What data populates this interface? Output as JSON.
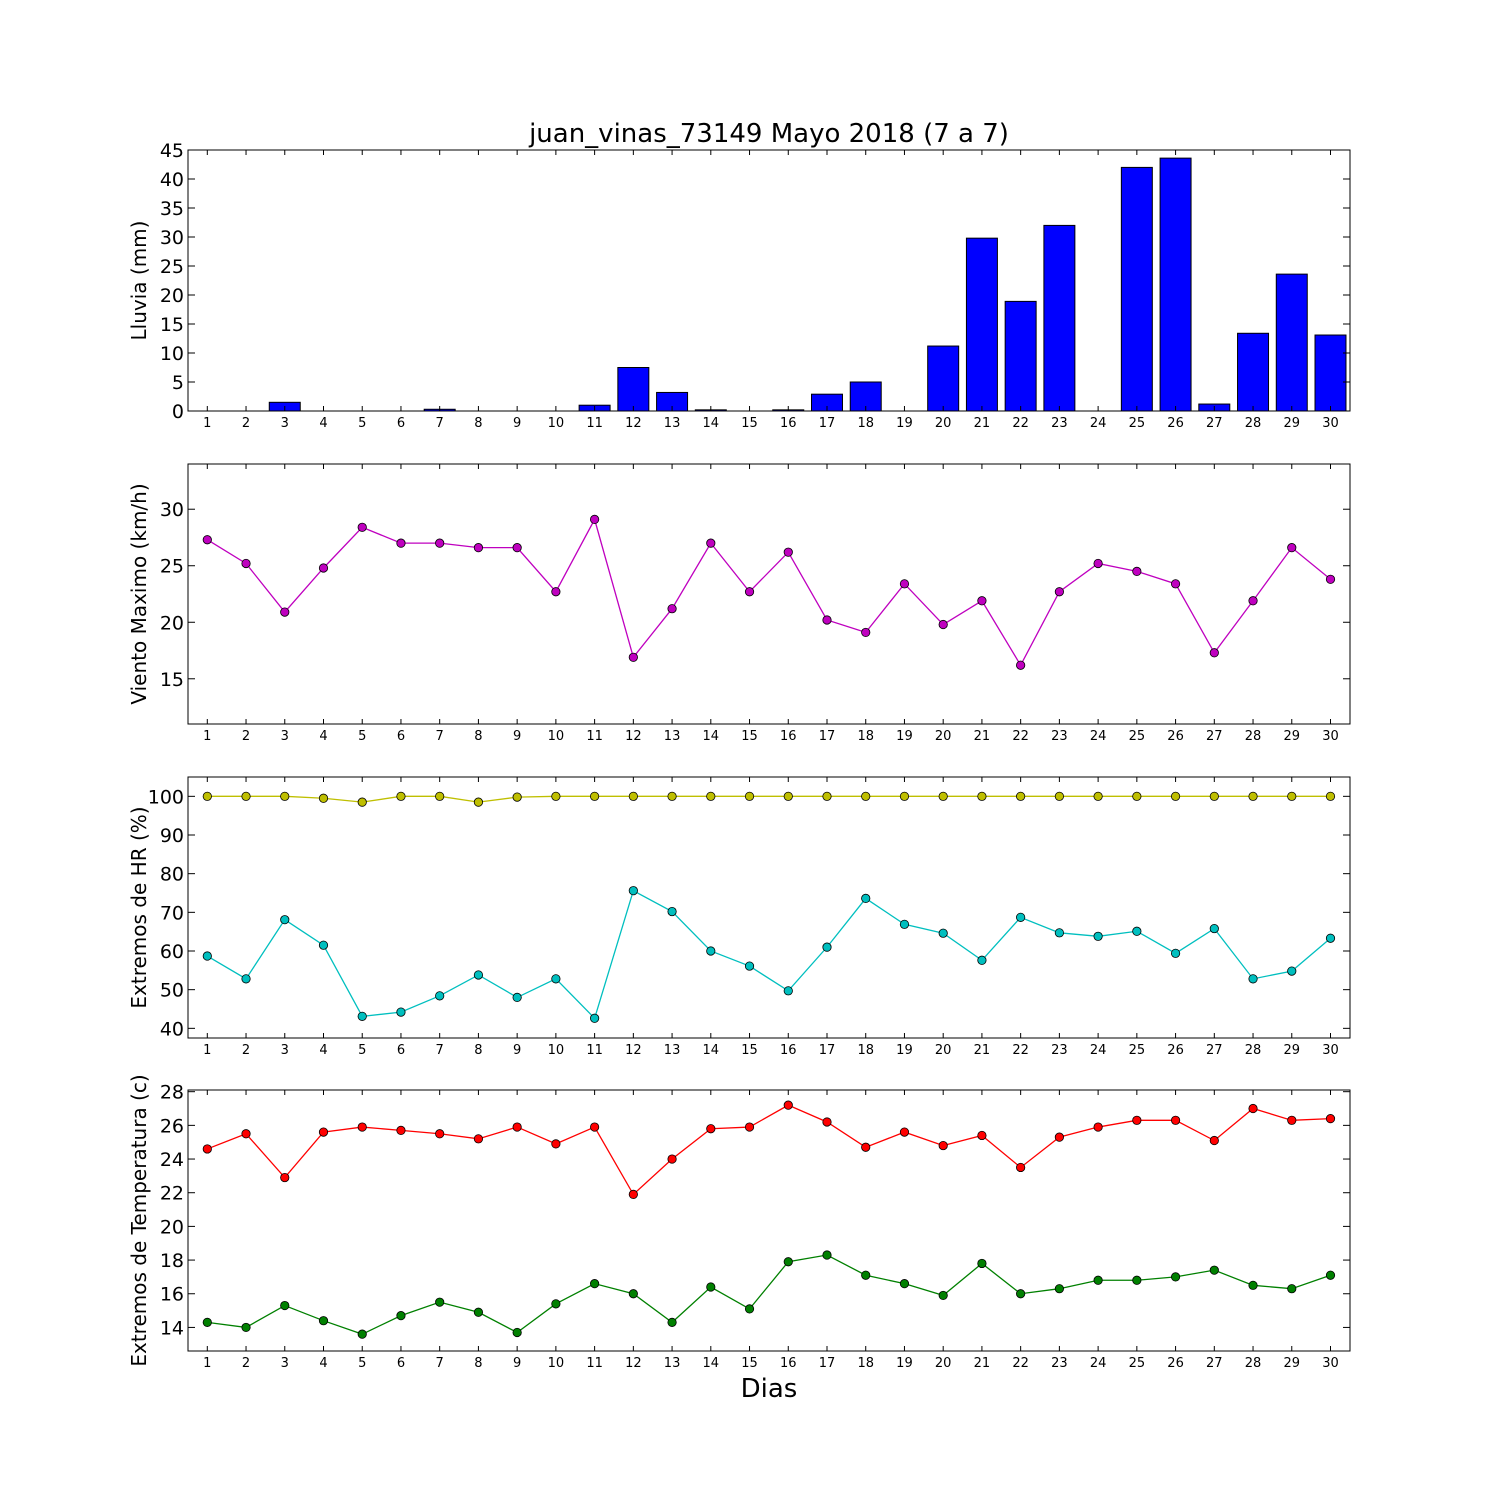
{
  "title": "juan_vinas_73149 Mayo 2018  (7 a 7)",
  "xlabel": "Dias",
  "chart_data": [
    {
      "type": "bar",
      "ylabel": "Lluvia (mm)",
      "ylim": [
        0,
        45
      ],
      "yticks": [
        0,
        5,
        10,
        15,
        20,
        25,
        30,
        35,
        40,
        45
      ],
      "categories": [
        1,
        2,
        3,
        4,
        5,
        6,
        7,
        8,
        9,
        10,
        11,
        12,
        13,
        14,
        15,
        16,
        17,
        18,
        19,
        20,
        21,
        22,
        23,
        24,
        25,
        26,
        27,
        28,
        29,
        30
      ],
      "series": [
        {
          "color": "#0000ff",
          "values": [
            0,
            0,
            1.5,
            0,
            0,
            0,
            0.3,
            0,
            0,
            0,
            1.0,
            7.5,
            3.2,
            0.2,
            0,
            0.2,
            2.9,
            5.0,
            0,
            11.2,
            29.8,
            18.9,
            32.0,
            0,
            42.0,
            43.6,
            1.2,
            13.4,
            23.6,
            13.1
          ]
        }
      ]
    },
    {
      "type": "line",
      "ylabel": "Viento Maximo (km/h)",
      "ylim": [
        11,
        34
      ],
      "yticks": [
        15,
        20,
        25,
        30
      ],
      "x": [
        1,
        2,
        3,
        4,
        5,
        6,
        7,
        8,
        9,
        10,
        11,
        12,
        13,
        14,
        15,
        16,
        17,
        18,
        19,
        20,
        21,
        22,
        23,
        24,
        25,
        26,
        27,
        28,
        29,
        30
      ],
      "series": [
        {
          "color": "#bf00bf",
          "values": [
            27.3,
            25.2,
            20.9,
            24.8,
            28.4,
            27.0,
            27.0,
            26.6,
            26.6,
            22.7,
            29.1,
            16.9,
            21.2,
            27.0,
            22.7,
            26.2,
            20.2,
            19.1,
            23.4,
            19.8,
            21.9,
            16.2,
            22.7,
            25.2,
            24.5,
            23.4,
            17.3,
            21.9,
            26.6,
            23.8
          ]
        }
      ]
    },
    {
      "type": "line",
      "ylabel": "Extremos de HR (%)",
      "ylim": [
        37.5,
        105
      ],
      "yticks": [
        40,
        50,
        60,
        70,
        80,
        90,
        100
      ],
      "x": [
        1,
        2,
        3,
        4,
        5,
        6,
        7,
        8,
        9,
        10,
        11,
        12,
        13,
        14,
        15,
        16,
        17,
        18,
        19,
        20,
        21,
        22,
        23,
        24,
        25,
        26,
        27,
        28,
        29,
        30
      ],
      "series": [
        {
          "color": "#bfbf00",
          "values": [
            100,
            100,
            100,
            99.5,
            98.5,
            100,
            100,
            98.5,
            99.8,
            100,
            100,
            100,
            100,
            100,
            100,
            100,
            100,
            100,
            100,
            100,
            100,
            100,
            100,
            100,
            100,
            100,
            100,
            100,
            100,
            100
          ]
        },
        {
          "color": "#00bfbf",
          "values": [
            58.7,
            52.8,
            68.1,
            61.5,
            43.1,
            44.2,
            48.4,
            53.8,
            48.0,
            52.8,
            42.6,
            75.6,
            70.2,
            60.0,
            56.1,
            49.7,
            61.0,
            73.6,
            66.9,
            64.6,
            57.6,
            68.7,
            64.7,
            63.8,
            65.1,
            59.4,
            65.8,
            52.8,
            54.8,
            63.3
          ]
        }
      ]
    },
    {
      "type": "line",
      "ylabel": "Extremos de Temperatura (c)",
      "ylim": [
        12.6,
        28.1
      ],
      "yticks": [
        14,
        16,
        18,
        20,
        22,
        24,
        26,
        28
      ],
      "x": [
        1,
        2,
        3,
        4,
        5,
        6,
        7,
        8,
        9,
        10,
        11,
        12,
        13,
        14,
        15,
        16,
        17,
        18,
        19,
        20,
        21,
        22,
        23,
        24,
        25,
        26,
        27,
        28,
        29,
        30
      ],
      "series": [
        {
          "color": "#ff0000",
          "values": [
            24.6,
            25.5,
            22.9,
            25.6,
            25.9,
            25.7,
            25.5,
            25.2,
            25.9,
            24.9,
            25.9,
            21.9,
            24.0,
            25.8,
            25.9,
            27.2,
            26.2,
            24.7,
            25.6,
            24.8,
            25.4,
            23.5,
            25.3,
            25.9,
            26.3,
            26.3,
            25.1,
            27.0,
            26.3,
            26.4
          ]
        },
        {
          "color": "#008000",
          "values": [
            14.3,
            14.0,
            15.3,
            14.4,
            13.6,
            14.7,
            15.5,
            14.9,
            13.7,
            15.4,
            16.6,
            16.0,
            14.3,
            16.4,
            15.1,
            17.9,
            18.3,
            17.1,
            16.6,
            15.9,
            17.8,
            16.0,
            16.3,
            16.8,
            16.8,
            17.0,
            17.4,
            16.5,
            16.3,
            17.1
          ]
        }
      ]
    }
  ]
}
